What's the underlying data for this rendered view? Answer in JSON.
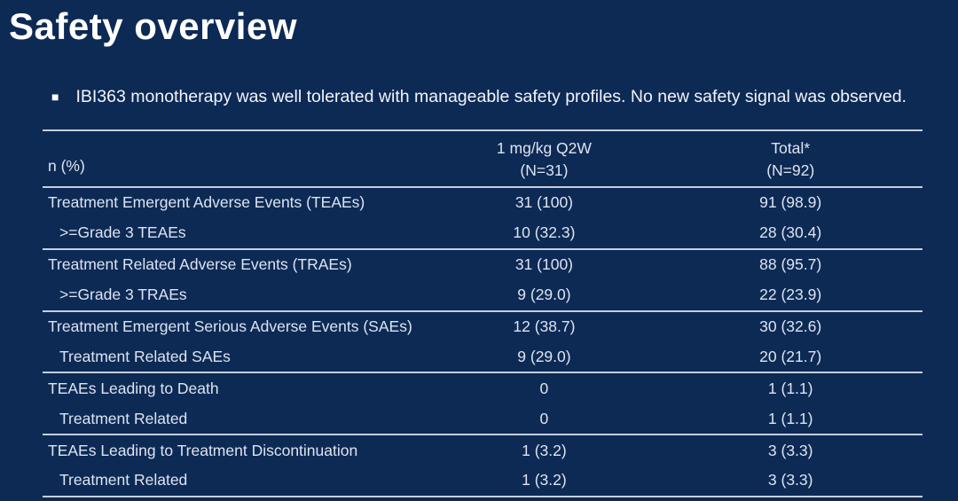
{
  "slide": {
    "title": "Safety overview",
    "bullet": {
      "icon": "square-bullet-icon",
      "text": "IBI363 monotherapy was well tolerated with manageable safety profiles. No new safety signal was observed."
    }
  },
  "colors": {
    "background": "#0d2a55",
    "title_text": "#ffffff",
    "body_text": "#dde4f0",
    "table_line": "#c6cedf"
  },
  "table": {
    "header": {
      "label": "n (%)",
      "col1_line1": "1 mg/kg Q2W",
      "col1_line2": "(N=31)",
      "col2_line1": "Total*",
      "col2_line2": "(N=92)"
    },
    "rows": [
      {
        "label": "Treatment Emergent Adverse Events (TEAEs)",
        "col1": "31 (100)",
        "col2": "91 (98.9)"
      },
      {
        "label": ">=Grade 3 TEAEs",
        "col1": "10 (32.3)",
        "col2": "28 (30.4)"
      },
      {
        "label": "Treatment Related Adverse Events (TRAEs)",
        "col1": "31 (100)",
        "col2": "88 (95.7)"
      },
      {
        "label": ">=Grade 3 TRAEs",
        "col1": "9 (29.0)",
        "col2": "22 (23.9)"
      },
      {
        "label": "Treatment Emergent Serious Adverse Events (SAEs)",
        "col1": "12 (38.7)",
        "col2": "30 (32.6)"
      },
      {
        "label": "Treatment Related SAEs",
        "col1": "9 (29.0)",
        "col2": "20 (21.7)"
      },
      {
        "label": "TEAEs Leading to Death",
        "col1": "0",
        "col2": "1 (1.1)"
      },
      {
        "label": "Treatment Related",
        "col1": "0",
        "col2": "1 (1.1)"
      },
      {
        "label": "TEAEs Leading to Treatment Discontinuation",
        "col1": "1 (3.2)",
        "col2": "3 (3.3)"
      },
      {
        "label": "Treatment Related",
        "col1": "1 (3.2)",
        "col2": "3 (3.3)"
      }
    ]
  }
}
